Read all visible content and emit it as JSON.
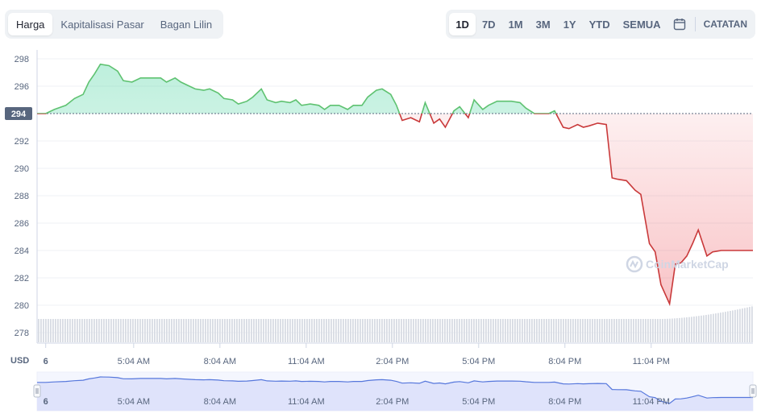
{
  "tabs": [
    {
      "label": "Harga",
      "active": true
    },
    {
      "label": "Kapitalisasi Pasar",
      "active": false
    },
    {
      "label": "Bagan Lilin",
      "active": false
    }
  ],
  "ranges": [
    {
      "label": "1D",
      "active": true
    },
    {
      "label": "7D",
      "active": false
    },
    {
      "label": "1M",
      "active": false
    },
    {
      "label": "3M",
      "active": false
    },
    {
      "label": "1Y",
      "active": false
    },
    {
      "label": "YTD",
      "active": false
    },
    {
      "label": "SEMUA",
      "active": false
    }
  ],
  "calendar_icon": "calendar-icon",
  "notes_label": "CATATAN",
  "currency_label": "USD",
  "watermark": "CoinMarketCap",
  "colors": {
    "up": "#16c784",
    "up_line": "#5fc271",
    "down": "#ea3943",
    "down_line": "#c9393a",
    "volume": "#d7dbe3",
    "navigator": "#dfe3fb",
    "navigator_line": "#5677dc"
  },
  "chart_data": {
    "type": "line",
    "baseline": 294,
    "baseline_label": "294",
    "ylim": [
      277,
      299
    ],
    "y_ticks": [
      298,
      296,
      294,
      292,
      290,
      288,
      286,
      284,
      282,
      280,
      278
    ],
    "x_range": [
      0,
      24.9
    ],
    "x_ticks": [
      {
        "t": 0.3,
        "label": "6"
      },
      {
        "t": 3.36,
        "label": "5:04 AM"
      },
      {
        "t": 6.36,
        "label": "8:04 AM"
      },
      {
        "t": 9.36,
        "label": "11:04 AM"
      },
      {
        "t": 12.36,
        "label": "2:04 PM"
      },
      {
        "t": 15.36,
        "label": "5:04 PM"
      },
      {
        "t": 18.36,
        "label": "8:04 PM"
      },
      {
        "t": 21.36,
        "label": "11:04 PM"
      }
    ],
    "series": [
      {
        "x": [
          0,
          0.3,
          0.6,
          1.0,
          1.3,
          1.6,
          1.8,
          2.0,
          2.2,
          2.5,
          2.8,
          3.0,
          3.3,
          3.6,
          3.8,
          4.0,
          4.3,
          4.5,
          4.8,
          5.0,
          5.3,
          5.5,
          5.8,
          6.0,
          6.3,
          6.5,
          6.8,
          7.0,
          7.3,
          7.5,
          7.8,
          8.0,
          8.3,
          8.5,
          8.8,
          9.0,
          9.2,
          9.5,
          9.8,
          10.0,
          10.2,
          10.5,
          10.8,
          11.0,
          11.3,
          11.5,
          11.8,
          12.0,
          12.3,
          12.5,
          12.7,
          13.0,
          13.3,
          13.5,
          13.8,
          14.0,
          14.2,
          14.5,
          14.7,
          15.0,
          15.2,
          15.5,
          15.7,
          16.0,
          16.3,
          16.5,
          16.8,
          17.0,
          17.3,
          17.5,
          17.8,
          18.0,
          18.3,
          18.5,
          18.8,
          19.0,
          19.2,
          19.5,
          19.8,
          20.0,
          20.2,
          20.5,
          20.8,
          21.0,
          21.3,
          21.5,
          21.7,
          22.0,
          22.2,
          22.4,
          22.6,
          22.8,
          23.0,
          23.3,
          23.5,
          23.8,
          24.0,
          24.2,
          24.4,
          24.6,
          24.9
        ],
        "y": [
          294.0,
          294.0,
          294.3,
          294.6,
          295.1,
          295.4,
          296.3,
          296.9,
          297.6,
          297.5,
          297.1,
          296.4,
          296.3,
          296.6,
          296.6,
          296.6,
          296.6,
          296.3,
          296.6,
          296.3,
          296.0,
          295.8,
          295.7,
          295.8,
          295.5,
          295.1,
          295.0,
          294.7,
          294.9,
          295.2,
          295.8,
          295.0,
          294.8,
          294.9,
          294.8,
          295.0,
          294.6,
          294.7,
          294.6,
          294.3,
          294.6,
          294.6,
          294.3,
          294.6,
          294.6,
          295.2,
          295.7,
          295.8,
          295.4,
          294.6,
          293.5,
          293.7,
          293.4,
          294.8,
          293.3,
          293.6,
          293.0,
          294.2,
          294.5,
          293.7,
          295.0,
          294.3,
          294.6,
          294.9,
          294.9,
          294.9,
          294.8,
          294.4,
          294.0,
          294.0,
          294.0,
          294.2,
          293.0,
          292.9,
          293.2,
          293.0,
          293.1,
          293.3,
          293.2,
          289.3,
          289.2,
          289.1,
          288.4,
          288.1,
          284.5,
          283.9,
          281.5,
          280.1,
          283.0,
          283.1,
          283.6,
          284.5,
          285.5,
          283.6,
          283.9,
          284.0,
          284.0,
          284.0,
          284.0,
          284.0,
          284.0
        ]
      }
    ]
  }
}
